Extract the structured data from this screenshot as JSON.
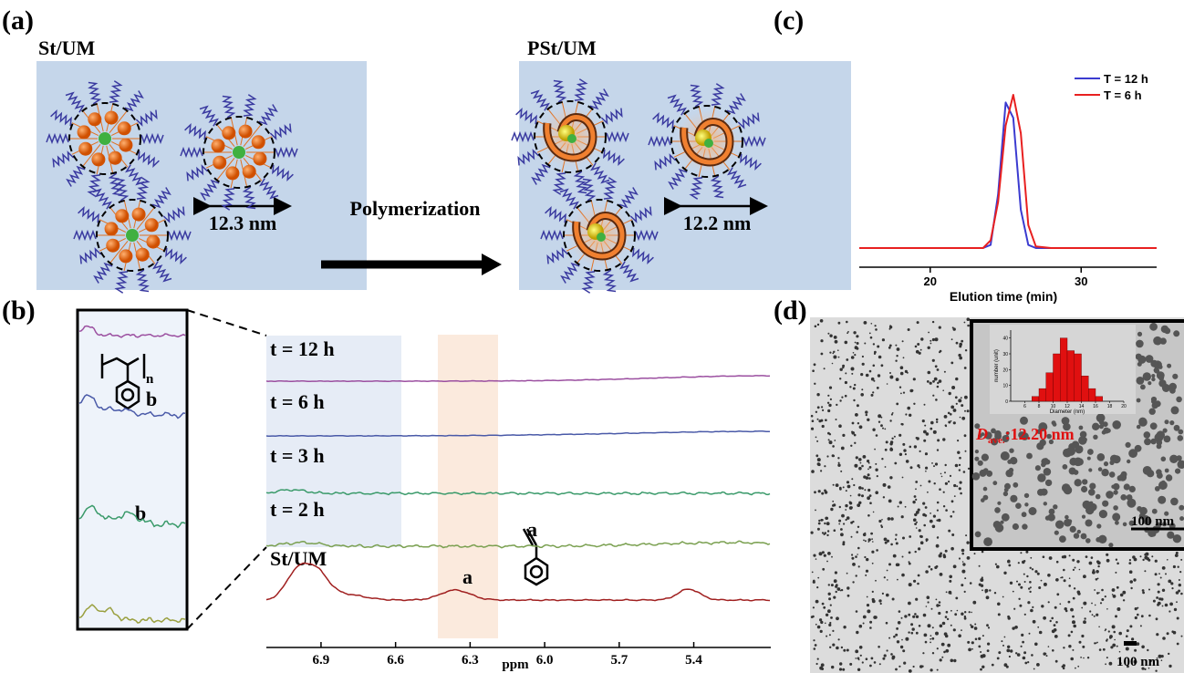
{
  "panels": {
    "a": {
      "label": "(a)",
      "left_title": "St/UM",
      "right_title": "PSt/UM",
      "arrow_label": "Polymerization",
      "left_size": "12.3 nm",
      "right_size": "12.2 nm"
    },
    "b": {
      "label": "(b)",
      "xlabel": "ppm",
      "xlim": [
        7.12,
        5.09
      ],
      "xticks": [
        6.9,
        6.6,
        6.3,
        {
          "value": 6,
          "label": "6.0"
        },
        5.7,
        5.4
      ],
      "spectra": [
        "t = 12 h",
        "t = 6 h",
        "t = 3 h",
        "t = 2 h",
        "St/UM"
      ],
      "peak_label": "a",
      "monomer_label": "a",
      "polymer_label": "b",
      "polymer_index": "n",
      "inset_peak_label": "b"
    },
    "c": {
      "label": "(c)",
      "type": "line",
      "xlabel": "Elution time (min)",
      "xlim": [
        15.3,
        35
      ],
      "xticks": [
        20,
        30
      ],
      "ylim": [
        0,
        1
      ],
      "x": [
        15.3,
        23.5,
        24,
        24.5,
        25,
        25.5,
        26,
        26.5,
        27,
        28,
        35
      ],
      "series": [
        {
          "name": "T = 12 h",
          "color": "#3b3bd0",
          "values": [
            0,
            0,
            0.02,
            0.35,
            0.95,
            0.85,
            0.25,
            0.02,
            0,
            0,
            0
          ]
        },
        {
          "name": "T = 6 h",
          "color": "#e82020",
          "values": [
            0,
            0,
            0.05,
            0.3,
            0.8,
            1.0,
            0.75,
            0.15,
            0.01,
            0,
            0
          ]
        }
      ]
    },
    "d": {
      "label": "(d)",
      "scale_bar": "100 nm",
      "inset_scale_bar": "100 nm",
      "average": {
        "symbol": "D",
        "subscript": "ave.",
        "text": ":12.20 nm"
      },
      "histogram": {
        "type": "histogram",
        "xlabel": "Diameter (nm)",
        "ylabel": "number (unit)",
        "color": "#e01010",
        "bins": [
          7,
          8,
          9,
          10,
          11,
          12,
          13,
          14,
          15,
          16,
          17
        ],
        "values": [
          3,
          8,
          18,
          30,
          40,
          32,
          30,
          16,
          8,
          3
        ],
        "xlim": [
          4,
          20
        ],
        "xticks": [
          6,
          8,
          10,
          12,
          14,
          16,
          18,
          20
        ],
        "ylim": [
          0,
          45
        ],
        "yticks": [
          0,
          10,
          20,
          30,
          40
        ]
      }
    }
  }
}
